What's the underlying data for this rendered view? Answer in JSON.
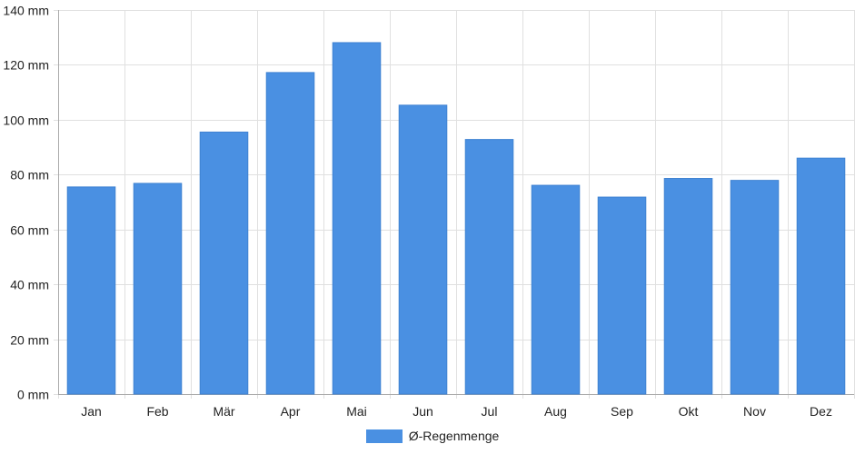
{
  "chart_data": {
    "type": "bar",
    "categories": [
      "Jan",
      "Feb",
      "Mär",
      "Apr",
      "Mai",
      "Jun",
      "Jul",
      "Aug",
      "Sep",
      "Okt",
      "Nov",
      "Dez"
    ],
    "series": [
      {
        "name": "Ø-Regenmenge",
        "values": [
          75.5,
          76.8,
          95.5,
          117.2,
          128.1,
          105.3,
          92.8,
          76.1,
          71.8,
          78.6,
          77.9,
          86.0
        ],
        "color": "#4a90e2"
      }
    ],
    "y_unit": "mm",
    "ylim": [
      0,
      140
    ],
    "yticks": [
      0,
      20,
      40,
      60,
      80,
      100,
      120,
      140
    ],
    "grid": true,
    "legend_position": "bottom-center"
  },
  "colors": {
    "bar_fill": "#4a90e2",
    "grid": "#e0e0e0",
    "axis": "#aaaaaa",
    "text": "#222222"
  }
}
